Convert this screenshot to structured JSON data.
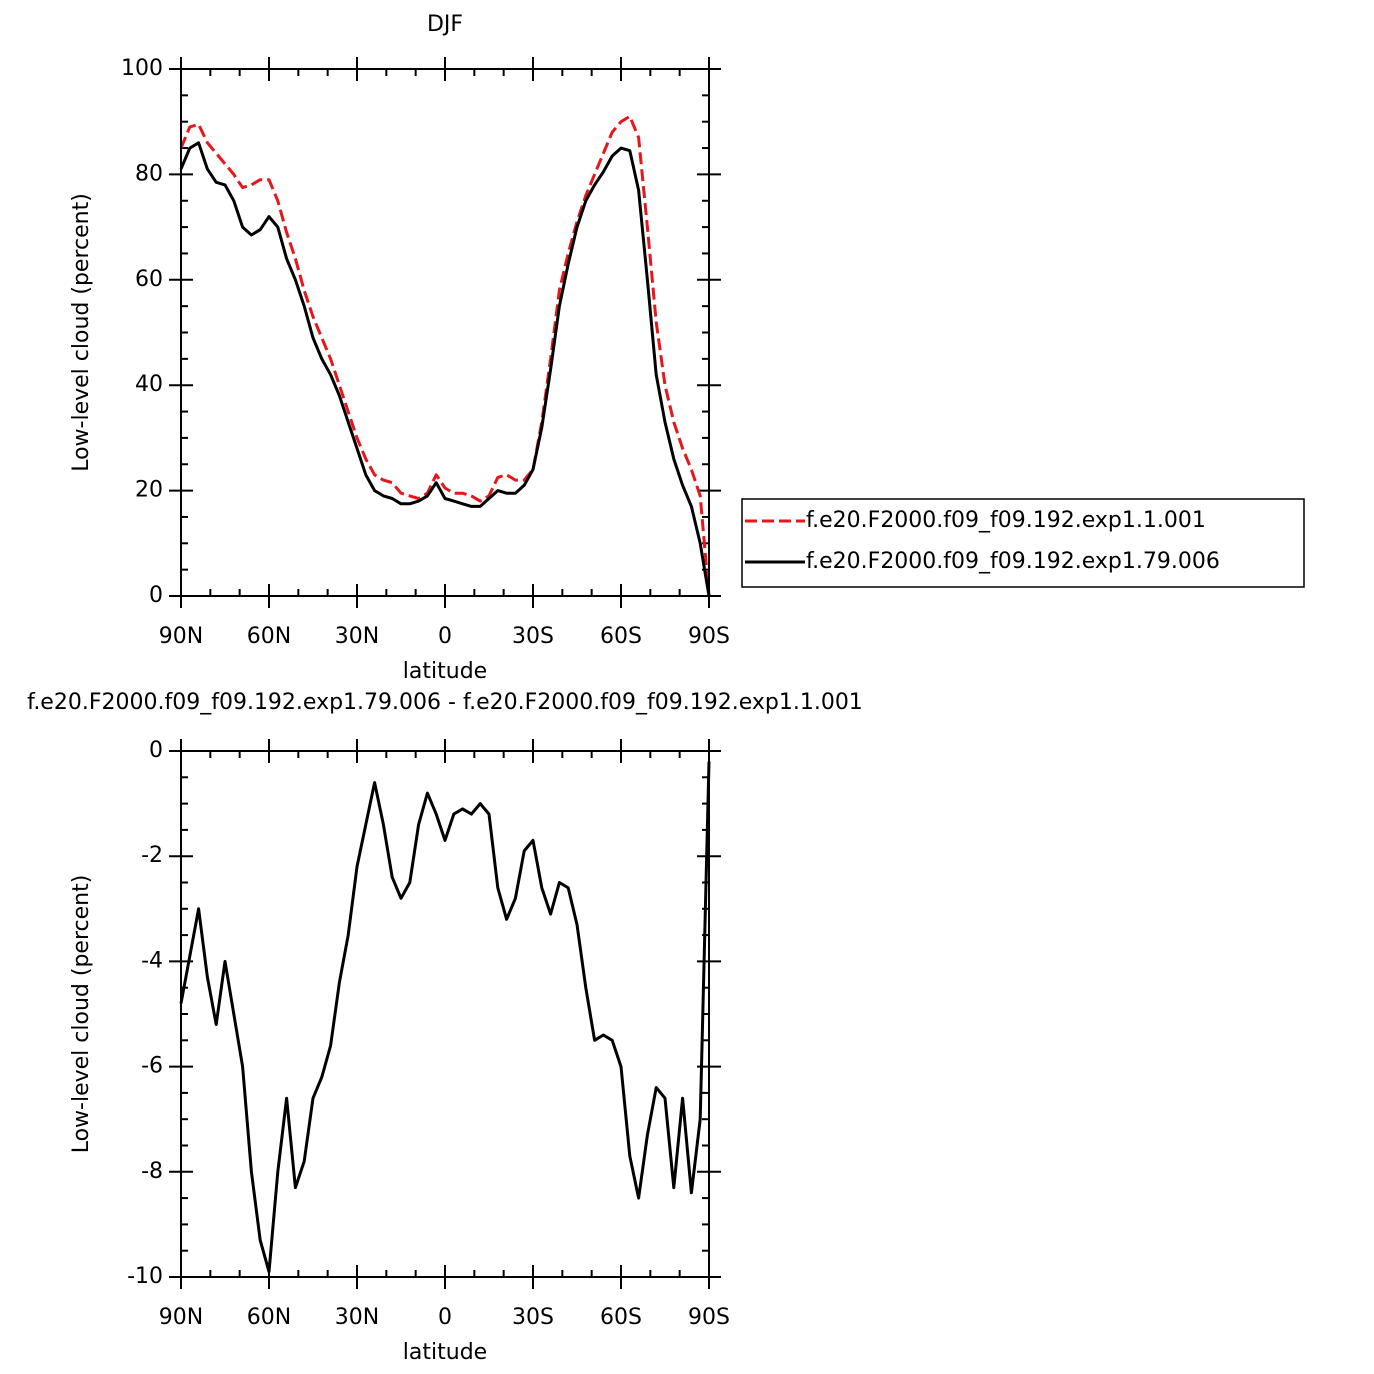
{
  "chart_data": [
    {
      "type": "line",
      "title": "DJF",
      "xlabel": "latitude",
      "ylabel": "Low-level cloud (percent)",
      "xlim": [
        90,
        -90
      ],
      "ylim": [
        0,
        100
      ],
      "xticks": [
        {
          "value": 90,
          "label": "90N"
        },
        {
          "value": 60,
          "label": "60N"
        },
        {
          "value": 30,
          "label": "30N"
        },
        0,
        {
          "value": -30,
          "label": "30S"
        },
        {
          "value": -60,
          "label": "60S"
        },
        {
          "value": -90,
          "label": "90S"
        }
      ],
      "yticks": [
        0,
        20,
        40,
        60,
        80,
        100
      ],
      "legend": "outside-right",
      "x": [
        90,
        87,
        84,
        81,
        78,
        75,
        72,
        69,
        66,
        63,
        60,
        57,
        54,
        51,
        48,
        45,
        42,
        39,
        36,
        33,
        30,
        27,
        24,
        21,
        18,
        15,
        12,
        9,
        6,
        3,
        0,
        -3,
        -6,
        -9,
        -12,
        -15,
        -18,
        -21,
        -24,
        -27,
        -30,
        -33,
        -36,
        -39,
        -42,
        -45,
        -48,
        -51,
        -54,
        -57,
        -60,
        -63,
        -66,
        -69,
        -72,
        -75,
        -78,
        -81,
        -84,
        -87,
        -90
      ],
      "series": [
        {
          "name": "f.e20.F2000.f09_f09.192.exp1.1.001",
          "color": "#e8161b",
          "dash": true,
          "values": [
            85,
            89,
            89.5,
            86,
            84,
            82,
            80,
            77.5,
            78,
            79,
            79,
            75,
            69,
            64,
            58,
            53,
            49,
            45,
            40,
            35,
            30,
            26,
            23,
            22,
            21.5,
            19.5,
            19,
            18.5,
            19.5,
            23,
            20.5,
            19.5,
            19.5,
            19,
            18,
            19,
            22.5,
            23,
            22,
            22,
            24,
            33,
            45,
            58,
            65,
            71,
            76,
            80,
            84,
            88,
            90,
            91,
            87,
            70,
            52,
            40,
            33,
            28,
            24,
            19,
            0
          ]
        },
        {
          "name": "f.e20.F2000.f09_f09.192.exp1.79.006",
          "color": "#000000",
          "dash": false,
          "values": [
            81,
            85,
            86,
            81,
            78.5,
            78,
            75,
            70,
            68.5,
            69.5,
            72,
            70,
            64,
            60,
            55,
            49,
            45,
            42,
            38,
            33,
            28,
            23,
            20,
            19,
            18.5,
            17.5,
            17.5,
            18,
            19,
            21.5,
            18.5,
            18,
            17.5,
            17,
            17,
            18.5,
            20,
            19.5,
            19.5,
            21,
            24,
            32,
            43,
            55,
            63,
            70,
            75,
            78,
            80.5,
            83.5,
            85,
            84.5,
            77,
            60,
            42,
            33,
            26,
            21,
            17,
            10,
            0
          ]
        }
      ]
    },
    {
      "type": "line",
      "title": "f.e20.F2000.f09_f09.192.exp1.79.006 - f.e20.F2000.f09_f09.192.exp1.1.001",
      "xlabel": "latitude",
      "ylabel": "Low-level cloud (percent)",
      "xlim": [
        90,
        -90
      ],
      "ylim": [
        -10,
        0
      ],
      "xticks": [
        {
          "value": 90,
          "label": "90N"
        },
        {
          "value": 60,
          "label": "60N"
        },
        {
          "value": 30,
          "label": "30N"
        },
        0,
        {
          "value": -30,
          "label": "30S"
        },
        {
          "value": -60,
          "label": "60S"
        },
        {
          "value": -90,
          "label": "90S"
        }
      ],
      "yticks": [
        -10,
        -8,
        -6,
        -4,
        -2,
        0
      ],
      "x": [
        90,
        87,
        84,
        81,
        78,
        75,
        72,
        69,
        66,
        63,
        60,
        57,
        54,
        51,
        48,
        45,
        42,
        39,
        36,
        33,
        30,
        27,
        24,
        21,
        18,
        15,
        12,
        9,
        6,
        3,
        0,
        -3,
        -6,
        -9,
        -12,
        -15,
        -18,
        -21,
        -24,
        -27,
        -30,
        -33,
        -36,
        -39,
        -42,
        -45,
        -48,
        -51,
        -54,
        -57,
        -60,
        -63,
        -66,
        -69,
        -72,
        -75,
        -78,
        -81,
        -84,
        -87,
        -90
      ],
      "series": [
        {
          "color": "#000000",
          "dash": false,
          "values": [
            -4.8,
            -3.9,
            -3.0,
            -4.3,
            -5.2,
            -4.0,
            -5.0,
            -6.0,
            -8.0,
            -9.3,
            -9.9,
            -8.0,
            -6.6,
            -8.3,
            -7.8,
            -6.6,
            -6.2,
            -5.6,
            -4.4,
            -3.5,
            -2.2,
            -1.4,
            -0.6,
            -1.4,
            -2.4,
            -2.8,
            -2.5,
            -1.4,
            -0.8,
            -1.2,
            -1.7,
            -1.2,
            -1.1,
            -1.2,
            -1.0,
            -1.2,
            -2.6,
            -3.2,
            -2.8,
            -1.9,
            -1.7,
            -2.6,
            -3.1,
            -2.5,
            -2.6,
            -3.3,
            -4.5,
            -5.5,
            -5.4,
            -5.5,
            -6.0,
            -7.7,
            -8.5,
            -7.3,
            -6.4,
            -6.6,
            -8.3,
            -6.6,
            -8.4,
            -7.0,
            -0.2
          ]
        }
      ]
    }
  ]
}
